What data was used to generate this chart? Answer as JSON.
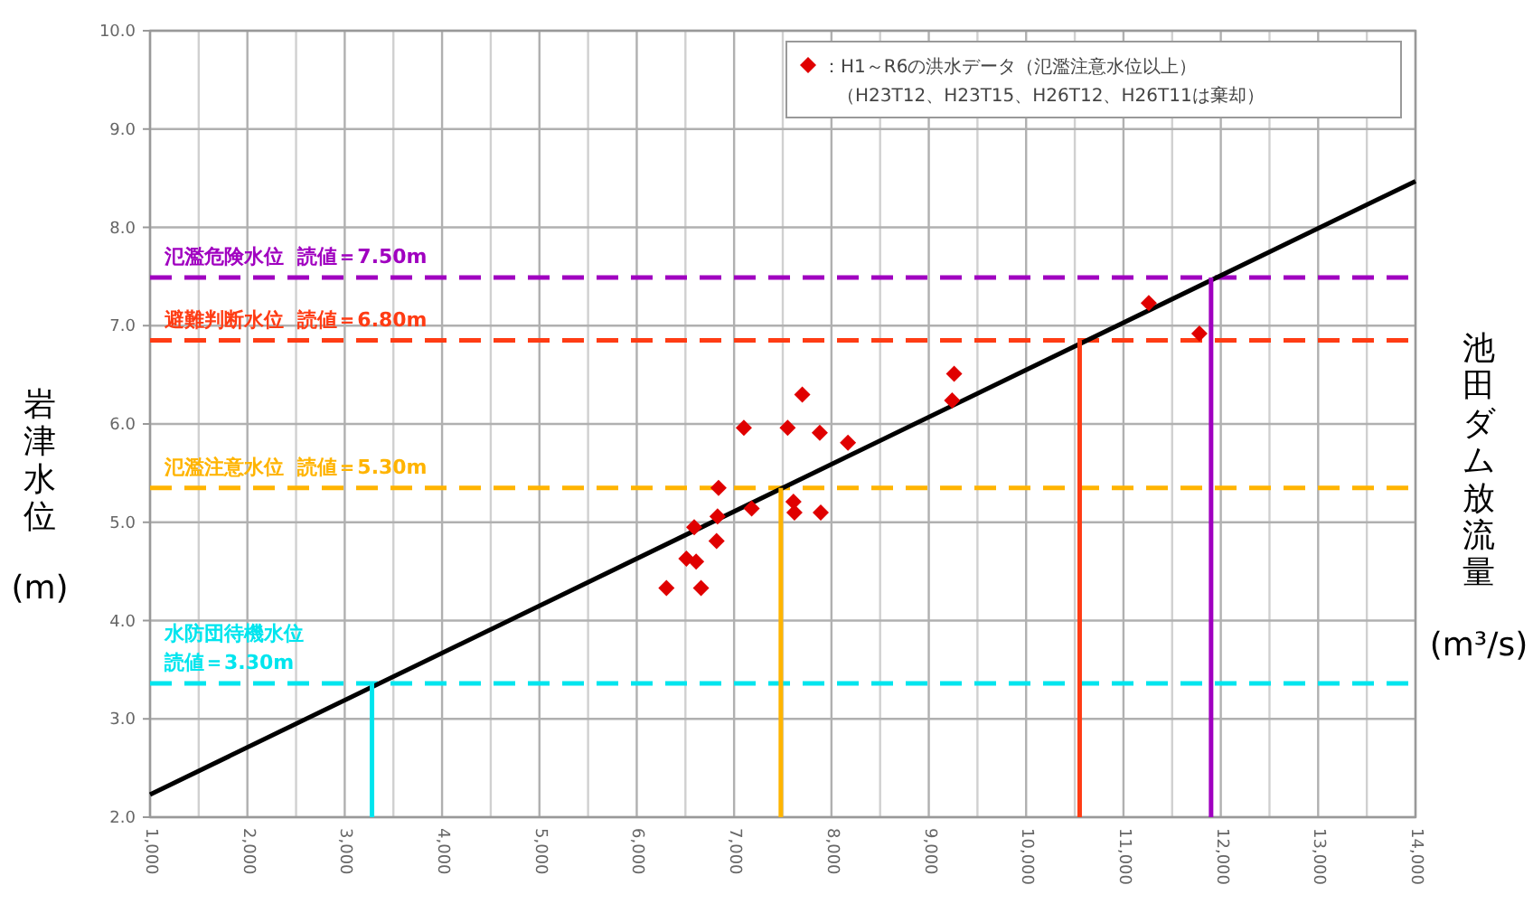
{
  "chart_data": {
    "type": "scatter",
    "xlabel": "池田ダム放流量\n(m³/s)",
    "ylabel": "岩津水位\n(m)",
    "xlim": [
      1000,
      14000
    ],
    "ylim": [
      2.0,
      10.0
    ],
    "xticks": [
      {
        "value": 1000,
        "label": "1,000"
      },
      {
        "value": 1500,
        "label": null
      },
      {
        "value": 2000,
        "label": "2,000"
      },
      {
        "value": 2500,
        "label": null
      },
      {
        "value": 3000,
        "label": "3,000"
      },
      {
        "value": 3500,
        "label": null
      },
      {
        "value": 4000,
        "label": "4,000"
      },
      {
        "value": 4500,
        "label": null
      },
      {
        "value": 5000,
        "label": "5,000"
      },
      {
        "value": 5500,
        "label": null
      },
      {
        "value": 6000,
        "label": "6,000"
      },
      {
        "value": 6500,
        "label": null
      },
      {
        "value": 7000,
        "label": "7,000"
      },
      {
        "value": 7500,
        "label": null
      },
      {
        "value": 8000,
        "label": "8,000"
      },
      {
        "value": 8500,
        "label": null
      },
      {
        "value": 9000,
        "label": "9,000"
      },
      {
        "value": 9500,
        "label": null
      },
      {
        "value": 10000,
        "label": "10,000"
      },
      {
        "value": 10500,
        "label": null
      },
      {
        "value": 11000,
        "label": "11,000"
      },
      {
        "value": 11500,
        "label": null
      },
      {
        "value": 12000,
        "label": "12,000"
      },
      {
        "value": 12500,
        "label": null
      },
      {
        "value": 13000,
        "label": "13,000"
      },
      {
        "value": 13500,
        "label": null
      },
      {
        "value": 14000,
        "label": "14,000"
      }
    ],
    "yticks": [
      {
        "value": 2,
        "label": "2.0"
      },
      {
        "value": 3,
        "label": "3.0"
      },
      {
        "value": 4,
        "label": "4.0"
      },
      {
        "value": 5,
        "label": "5.0"
      },
      {
        "value": 6,
        "label": "6.0"
      },
      {
        "value": 7,
        "label": "7.0"
      },
      {
        "value": 8,
        "label": "8.0"
      },
      {
        "value": 9,
        "label": "9.0"
      },
      {
        "value": 10,
        "label": "10.0"
      }
    ],
    "grid": true,
    "legend": "top right",
    "ref_lines": [
      {
        "axis": "y",
        "value": 7.49,
        "label": "氾濫危険水位  読値＝7.50m",
        "color": "#a000c0",
        "line_style": "dashed"
      },
      {
        "axis": "y",
        "value": 6.85,
        "label": "避難判断水位  読値＝6.80m",
        "color": "#ff3c14",
        "line_style": "dashed"
      },
      {
        "axis": "y",
        "value": 5.35,
        "label": "氾濫注意水位  読値＝5.30m",
        "color": "#ffb400",
        "line_style": "dashed"
      },
      {
        "axis": "y",
        "value": 3.36,
        "label": "水防団待機水位",
        "color": "#00e5ee",
        "line_style": "dashed"
      }
    ],
    "annotations": [
      "（H23T12、H23T15、H26T12、H26T11は棄却）",
      {
        "text": "読値＝3.30m",
        "y": 3.36
      }
    ],
    "series": [
      {
        "type": "line",
        "color": "#000000",
        "x": [
          1000,
          14000
        ],
        "values": [
          2.23,
          8.47
        ]
      },
      {
        "type": "line",
        "color": "#00e5ee",
        "x": [
          3280,
          3280
        ],
        "values": [
          2.0,
          3.36
        ]
      },
      {
        "type": "line",
        "color": "#ffb400",
        "x": [
          7480,
          7480
        ],
        "values": [
          2.0,
          5.35
        ]
      },
      {
        "type": "line",
        "color": "#ff3c14",
        "x": [
          10550,
          10550
        ],
        "values": [
          2.0,
          6.85
        ]
      },
      {
        "type": "line",
        "color": "#a000c0",
        "x": [
          11900,
          11900
        ],
        "values": [
          2.0,
          7.49
        ]
      },
      {
        "name": "：H1～R6の洪水データ（氾濫注意水位以上）",
        "color": "#e00000",
        "marker": "diamond",
        "x": [
          6305,
          6660,
          6510,
          6610,
          6820,
          6590,
          6830,
          6840,
          7180,
          7610,
          7620,
          7890,
          8170,
          7880,
          7100,
          7550,
          7700,
          9260,
          9240,
          11260,
          11780
        ],
        "values": [
          4.33,
          4.33,
          4.63,
          4.6,
          4.81,
          4.95,
          5.06,
          5.35,
          5.14,
          5.21,
          5.1,
          5.1,
          5.81,
          5.91,
          5.96,
          5.96,
          6.3,
          6.51,
          6.24,
          7.23,
          6.92
        ]
      }
    ]
  }
}
